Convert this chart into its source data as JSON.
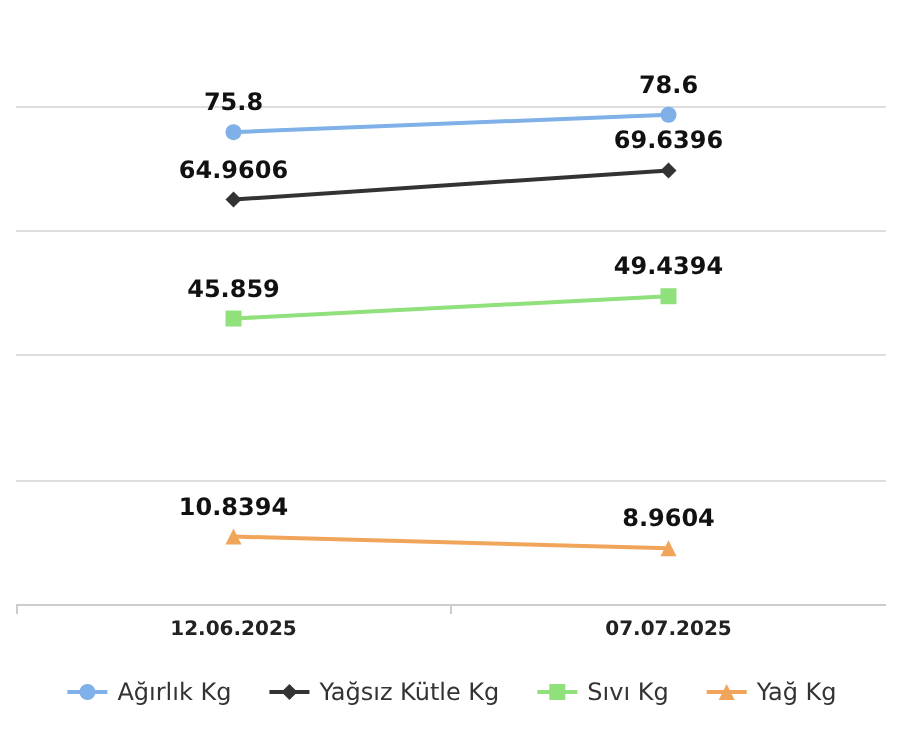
{
  "chart_data": {
    "type": "line",
    "categories": [
      "12.06.2025",
      "07.07.2025"
    ],
    "series": [
      {
        "name": "Ağırlık Kg",
        "color": "#7fb0e8",
        "marker": "circle",
        "values": [
          75.8,
          78.6
        ]
      },
      {
        "name": "Yağsız Kütle Kg",
        "color": "#333333",
        "marker": "diamond",
        "values": [
          64.9606,
          69.6396
        ]
      },
      {
        "name": "Sıvı Kg",
        "color": "#90e07c",
        "marker": "square",
        "values": [
          45.859,
          49.4394
        ]
      },
      {
        "name": "Yağ Kg",
        "color": "#f0a55a",
        "marker": "triangle",
        "values": [
          10.8394,
          8.9604
        ]
      }
    ],
    "ylim": [
      0,
      80
    ],
    "yticks": [
      {
        "value": 0,
        "label": null
      },
      {
        "value": 20,
        "label": null
      },
      {
        "value": 40,
        "label": null
      },
      {
        "value": 60,
        "label": null
      },
      {
        "value": 80,
        "label": null
      }
    ],
    "tick_labels": "x",
    "grid": "y",
    "legend": "bottom",
    "data_labels": true,
    "line_style": "solid"
  }
}
